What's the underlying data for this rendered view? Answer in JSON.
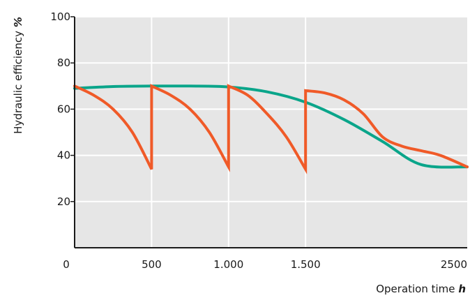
{
  "chart_data": {
    "type": "line",
    "title": "",
    "xlabel": "Operation time",
    "xlabel_unit": "h",
    "ylabel": "Hydraulic efficiency",
    "ylabel_unit": "%",
    "xlim": [
      0,
      2550
    ],
    "ylim": [
      0,
      100
    ],
    "x_ticks": [
      {
        "value": 0,
        "label": "0"
      },
      {
        "value": 500,
        "label": "500"
      },
      {
        "value": 1000,
        "label": "1.000"
      },
      {
        "value": 1500,
        "label": "1.500"
      },
      {
        "value": 2500,
        "label": "2500"
      }
    ],
    "y_ticks": [
      {
        "value": 20,
        "label": "20"
      },
      {
        "value": 40,
        "label": "40"
      },
      {
        "value": 60,
        "label": "60"
      },
      {
        "value": 80,
        "label": "80"
      },
      {
        "value": 100,
        "label": "100"
      }
    ],
    "vertical_gridlines": [
      500,
      1000,
      1500
    ],
    "horizontal_gridlines": [
      20,
      40,
      60,
      80,
      100
    ],
    "grid": true,
    "legend": false,
    "background_color": "#e6e6e6",
    "series": [
      {
        "color": "#0aa58a",
        "x": [
          0,
          250,
          500,
          750,
          1000,
          1250,
          1500,
          1750,
          2000,
          2250,
          2550
        ],
        "y": [
          69,
          69.8,
          70,
          70,
          69.6,
          67.5,
          63,
          55.5,
          46,
          36,
          35
        ]
      },
      {
        "color": "#f05a28",
        "x": [
          0,
          125,
          250,
          375,
          500,
          500,
          625,
          750,
          875,
          1000,
          1000,
          1125,
          1250,
          1375,
          1500,
          1500,
          1625,
          1750,
          1875,
          2000,
          2125,
          2250,
          2375,
          2550
        ],
        "y": [
          70,
          66,
          60,
          50,
          34,
          70,
          66,
          60,
          50,
          35,
          70,
          66,
          58,
          48,
          34,
          68,
          67,
          64,
          58,
          48,
          44,
          42,
          40,
          35
        ]
      }
    ]
  }
}
